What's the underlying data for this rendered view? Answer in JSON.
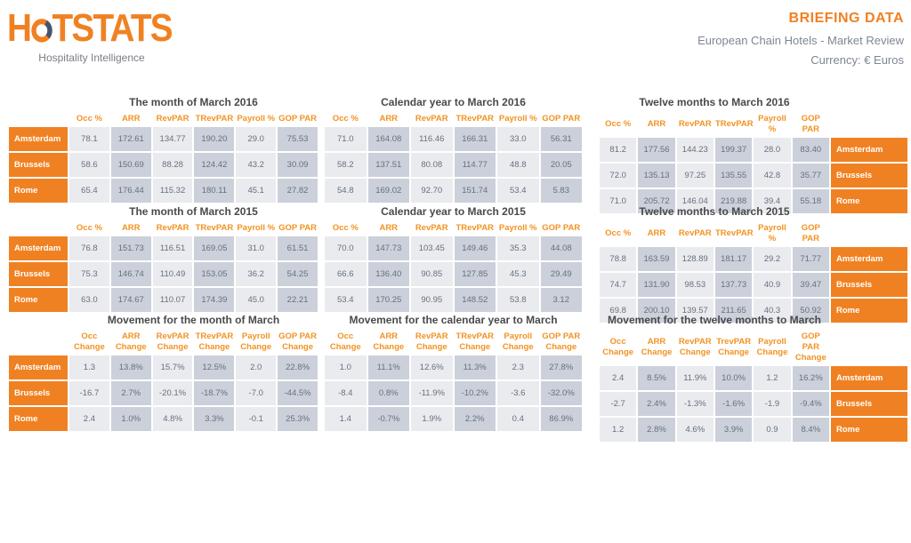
{
  "header": {
    "logo_text_left": "H",
    "logo_text_right": "TSTATS",
    "logo_tagline": "Hospitality Intelligence",
    "title": "BRIEFING DATA",
    "subtitle": "European Chain Hotels - Market Review",
    "currency": "Currency: € Euros"
  },
  "colors": {
    "brand_orange": "#F08122",
    "header_text_orange": "#F29322",
    "title_text": "#4A4A4C",
    "subtitle_text": "#7E8694",
    "cell_text": "#68707F",
    "cell_light": "#E9EBEE",
    "cell_dark": "#CBD0DA"
  },
  "tables": [
    {
      "title": "The month of March 2016",
      "city_side": "left",
      "columns": [
        "Occ %",
        "ARR",
        "RevPAR",
        "TRevPAR",
        "Payroll %",
        "GOP PAR"
      ],
      "rows": [
        {
          "city": "Amsterdam",
          "values": [
            "78.1",
            "172.61",
            "134.77",
            "190.20",
            "29.0",
            "75.53"
          ]
        },
        {
          "city": "Brussels",
          "values": [
            "58.6",
            "150.69",
            "88.28",
            "124.42",
            "43.2",
            "30.09"
          ]
        },
        {
          "city": "Rome",
          "values": [
            "65.4",
            "176.44",
            "115.32",
            "180.11",
            "45.1",
            "27.82"
          ]
        }
      ]
    },
    {
      "title": "Calendar year to March 2016",
      "city_side": "none",
      "columns": [
        "Occ %",
        "ARR",
        "RevPAR",
        "TRevPAR",
        "Payroll %",
        "GOP PAR"
      ],
      "rows": [
        {
          "city": "Amsterdam",
          "values": [
            "71.0",
            "164.08",
            "116.46",
            "166.31",
            "33.0",
            "56.31"
          ]
        },
        {
          "city": "Brussels",
          "values": [
            "58.2",
            "137.51",
            "80.08",
            "114.77",
            "48.8",
            "20.05"
          ]
        },
        {
          "city": "Rome",
          "values": [
            "54.8",
            "169.02",
            "92.70",
            "151.74",
            "53.4",
            "5.83"
          ]
        }
      ]
    },
    {
      "title": "Twelve months to March 2016",
      "city_side": "right",
      "columns": [
        "Occ %",
        "ARR",
        "RevPAR",
        "TRevPAR",
        "Payroll %",
        "GOP PAR"
      ],
      "rows": [
        {
          "city": "Amsterdam",
          "values": [
            "81.2",
            "177.56",
            "144.23",
            "199.37",
            "28.0",
            "83.40"
          ]
        },
        {
          "city": "Brussels",
          "values": [
            "72.0",
            "135.13",
            "97.25",
            "135.55",
            "42.8",
            "35.77"
          ]
        },
        {
          "city": "Rome",
          "values": [
            "71.0",
            "205.72",
            "146.04",
            "219.88",
            "39.4",
            "55.18"
          ]
        }
      ]
    },
    {
      "title": "The month of March 2015",
      "city_side": "left",
      "columns": [
        "Occ %",
        "ARR",
        "RevPAR",
        "TRevPAR",
        "Payroll %",
        "GOP PAR"
      ],
      "rows": [
        {
          "city": "Amsterdam",
          "values": [
            "76.8",
            "151.73",
            "116.51",
            "169.05",
            "31.0",
            "61.51"
          ]
        },
        {
          "city": "Brussels",
          "values": [
            "75.3",
            "146.74",
            "110.49",
            "153.05",
            "36.2",
            "54.25"
          ]
        },
        {
          "city": "Rome",
          "values": [
            "63.0",
            "174.67",
            "110.07",
            "174.39",
            "45.0",
            "22.21"
          ]
        }
      ]
    },
    {
      "title": "Calendar year to March 2015",
      "city_side": "none",
      "columns": [
        "Occ %",
        "ARR",
        "RevPAR",
        "TRevPAR",
        "Payroll %",
        "GOP PAR"
      ],
      "rows": [
        {
          "city": "Amsterdam",
          "values": [
            "70.0",
            "147.73",
            "103.45",
            "149.46",
            "35.3",
            "44.08"
          ]
        },
        {
          "city": "Brussels",
          "values": [
            "66.6",
            "136.40",
            "90.85",
            "127.85",
            "45.3",
            "29.49"
          ]
        },
        {
          "city": "Rome",
          "values": [
            "53.4",
            "170.25",
            "90.95",
            "148.52",
            "53.8",
            "3.12"
          ]
        }
      ]
    },
    {
      "title": "Twelve months to March 2015",
      "city_side": "right",
      "columns": [
        "Occ %",
        "ARR",
        "RevPAR",
        "TRevPAR",
        "Payroll %",
        "GOP PAR"
      ],
      "rows": [
        {
          "city": "Amsterdam",
          "values": [
            "78.8",
            "163.59",
            "128.89",
            "181.17",
            "29.2",
            "71.77"
          ]
        },
        {
          "city": "Brussels",
          "values": [
            "74.7",
            "131.90",
            "98.53",
            "137.73",
            "40.9",
            "39.47"
          ]
        },
        {
          "city": "Rome",
          "values": [
            "69.8",
            "200.10",
            "139.57",
            "211.65",
            "40.3",
            "50.92"
          ]
        }
      ]
    },
    {
      "title": "Movement for the month of March",
      "city_side": "left",
      "columns": [
        "Occ\nChange",
        "ARR\nChange",
        "RevPAR\nChange",
        "TRevPAR\nChange",
        "Payroll\nChange",
        "GOP PAR\nChange"
      ],
      "rows": [
        {
          "city": "Amsterdam",
          "values": [
            "1.3",
            "13.8%",
            "15.7%",
            "12.5%",
            "2.0",
            "22.8%"
          ]
        },
        {
          "city": "Brussels",
          "values": [
            "-16.7",
            "2.7%",
            "-20.1%",
            "-18.7%",
            "-7.0",
            "-44.5%"
          ]
        },
        {
          "city": "Rome",
          "values": [
            "2.4",
            "1.0%",
            "4.8%",
            "3.3%",
            "-0.1",
            "25.3%"
          ]
        }
      ]
    },
    {
      "title": "Movement for the calendar year to March",
      "city_side": "none",
      "columns": [
        "Occ\nChange",
        "ARR\nChange",
        "RevPAR\nChange",
        "TRevPAR\nChange",
        "Payroll\nChange",
        "GOP PAR\nChange"
      ],
      "rows": [
        {
          "city": "Amsterdam",
          "values": [
            "1.0",
            "11.1%",
            "12.6%",
            "11.3%",
            "2.3",
            "27.8%"
          ]
        },
        {
          "city": "Brussels",
          "values": [
            "-8.4",
            "0.8%",
            "-11.9%",
            "-10.2%",
            "-3.6",
            "-32.0%"
          ]
        },
        {
          "city": "Rome",
          "values": [
            "1.4",
            "-0.7%",
            "1.9%",
            "2.2%",
            "0.4",
            "86.9%"
          ]
        }
      ]
    },
    {
      "title": "Movement for the twelve months to March",
      "city_side": "right",
      "columns": [
        "Occ Change",
        "ARR\nChange",
        "RevPAR\nChange",
        "TrevPAR\nChange",
        "Payroll\nChange",
        "GOP PAR\nChange"
      ],
      "rows": [
        {
          "city": "Amsterdam",
          "values": [
            "2.4",
            "8.5%",
            "11.9%",
            "10.0%",
            "1.2",
            "16.2%"
          ]
        },
        {
          "city": "Brussels",
          "values": [
            "-2.7",
            "2.4%",
            "-1.3%",
            "-1.6%",
            "-1.9",
            "-9.4%"
          ]
        },
        {
          "city": "Rome",
          "values": [
            "1.2",
            "2.8%",
            "4.6%",
            "3.9%",
            "0.9",
            "8.4%"
          ]
        }
      ]
    }
  ]
}
